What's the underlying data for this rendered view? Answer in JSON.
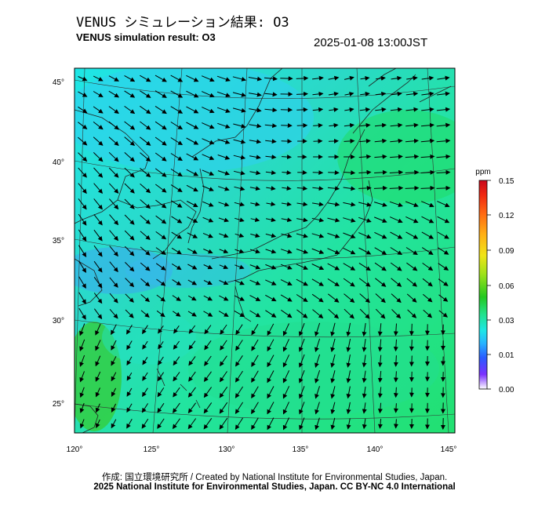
{
  "header": {
    "title_jp": "VENUS シミュレーション結果: O3",
    "title_en": "VENUS simulation result: O3",
    "timestamp": "2025-01-08 13:00JST"
  },
  "map": {
    "lat_ticks": [
      "45°",
      "40°",
      "35°",
      "30°",
      "25°"
    ],
    "lon_ticks": [
      "120°",
      "125°",
      "130°",
      "135°",
      "140°",
      "145°"
    ]
  },
  "colorbar": {
    "unit": "ppm",
    "tick_labels": [
      "0.15",
      "0.12",
      "0.09",
      "0.06",
      "0.03",
      "0.01",
      "0.00"
    ],
    "colors": [
      "#ffffff",
      "#7b2fff",
      "#2a5cff",
      "#27b4ff",
      "#1ee6e6",
      "#22e28a",
      "#22c820",
      "#9ee21a",
      "#f0e418",
      "#ffb014",
      "#ff6a12",
      "#f02810",
      "#c8081c"
    ]
  },
  "footer": {
    "credit": "作成: 国立環境研究所 / Created by National Institute for Environmental Studies, Japan.",
    "copyright": "2025 National Institute for Environmental Studies, Japan. CC BY-NC 4.0 International"
  }
}
